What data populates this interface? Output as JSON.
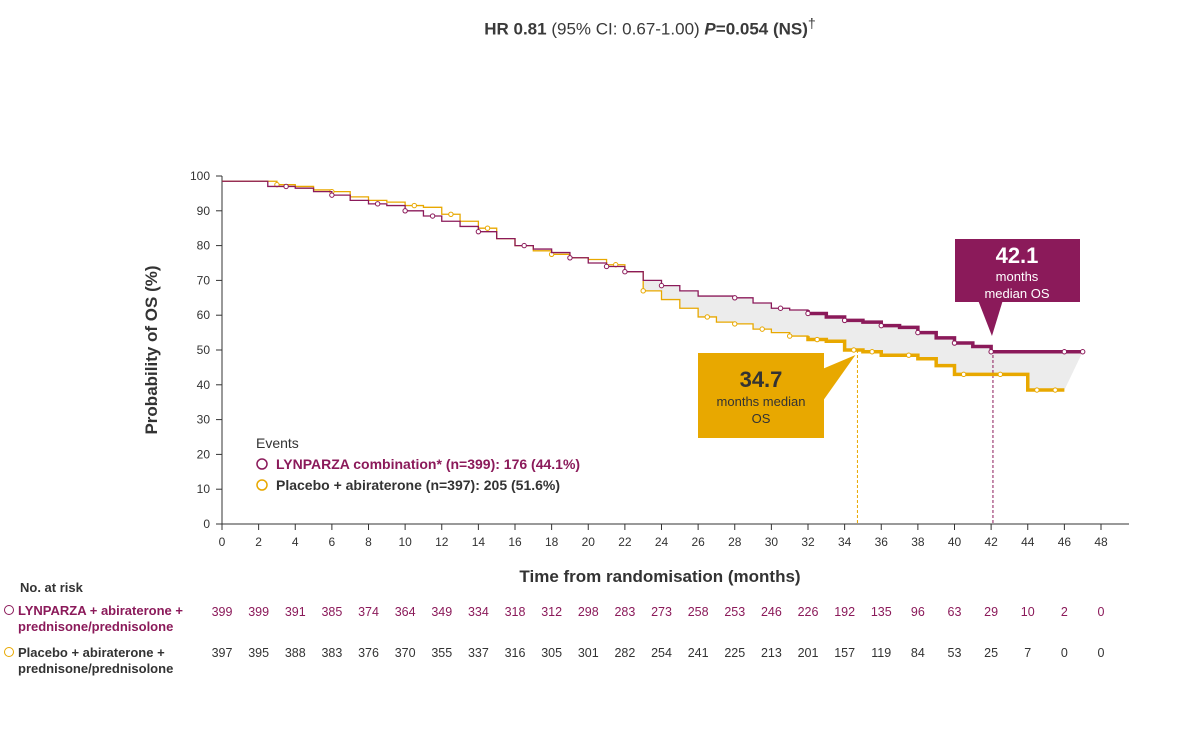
{
  "header": {
    "hr_label": "HR 0.81",
    "ci_text": "(95% CI: 0.67-1.00)",
    "p_label": "P",
    "p_value": "=0.054 (NS)",
    "dagger": "†"
  },
  "colors": {
    "lynparza": "#8B1A5A",
    "placebo": "#E8A800",
    "axis": "#333333"
  },
  "chart_data": {
    "type": "line",
    "title": "",
    "xlabel": "Time from randomisation (months)",
    "ylabel": "Probability of OS (%)",
    "xlim": [
      0,
      48
    ],
    "ylim": [
      0,
      100
    ],
    "x_ticks": [
      0,
      2,
      4,
      6,
      8,
      10,
      12,
      14,
      16,
      18,
      20,
      22,
      24,
      26,
      28,
      30,
      32,
      34,
      36,
      38,
      40,
      42,
      44,
      46,
      48
    ],
    "y_ticks": [
      0,
      10,
      20,
      30,
      40,
      50,
      60,
      70,
      80,
      90,
      100
    ],
    "grid": false,
    "legend_title": "Events",
    "legend_placement": "bottom-left",
    "series": [
      {
        "name": "LYNPARZA combination* (n=399): 176 (44.1%)",
        "color": "#8B1A5A",
        "x": [
          0,
          2,
          2.5,
          4,
          5,
          6,
          7,
          8,
          9,
          10,
          11,
          12,
          13,
          14,
          15,
          16,
          17,
          18,
          19,
          20,
          21,
          22,
          23,
          24,
          25,
          26,
          27,
          28,
          29,
          30,
          31,
          32,
          33,
          34,
          35,
          36,
          37,
          38,
          39,
          40,
          41,
          42,
          43,
          44,
          45,
          46,
          47
        ],
        "y": [
          98.5,
          98.5,
          97,
          96.5,
          95.5,
          94.5,
          93,
          92,
          91.5,
          90,
          88.5,
          87,
          85.5,
          84,
          82,
          80,
          79,
          78,
          76.5,
          75,
          74,
          72.5,
          70,
          68.5,
          67,
          65.5,
          65.5,
          65,
          63.5,
          62,
          61.5,
          60.5,
          59.5,
          58.5,
          58,
          57,
          56.5,
          55,
          53.5,
          52,
          51,
          49.5,
          49.5,
          49.5,
          49.5,
          49.5,
          49.5
        ],
        "censor_x": [
          3.5,
          6,
          8.5,
          10,
          11.5,
          14,
          16.5,
          19,
          21,
          22,
          24,
          28,
          30.5,
          32,
          34,
          36,
          38,
          40,
          42,
          46,
          47
        ]
      },
      {
        "name": "Placebo + abiraterone (n=397): 205 (51.6%)",
        "color": "#E8A800",
        "x": [
          0,
          2,
          3,
          4,
          5,
          6,
          7,
          8,
          9,
          10,
          11,
          12,
          13,
          14,
          15,
          16,
          17,
          18,
          19,
          20,
          21,
          22,
          23,
          24,
          25,
          26,
          27,
          28,
          29,
          30,
          31,
          32,
          33,
          34,
          35,
          36,
          37,
          38,
          39,
          40,
          41,
          42,
          43,
          44,
          45,
          46
        ],
        "y": [
          98.5,
          98.5,
          97.5,
          97,
          96,
          95.5,
          94,
          93,
          92.5,
          91.5,
          91,
          89,
          87,
          85,
          82,
          80,
          78.5,
          77.5,
          76.5,
          76,
          74.5,
          72.5,
          67,
          64.5,
          62,
          59.5,
          58,
          57.5,
          56,
          55,
          54,
          53,
          52.5,
          50,
          49.5,
          48.5,
          48.5,
          47.5,
          45.5,
          43,
          43,
          43,
          43,
          38.5,
          38.5,
          38.5
        ],
        "censor_x": [
          3,
          6,
          10.5,
          12.5,
          14.5,
          18,
          21.5,
          23,
          26.5,
          28,
          29.5,
          31,
          32.5,
          34.5,
          35.5,
          37.5,
          40.5,
          42.5,
          44.5,
          45.5
        ]
      }
    ],
    "annotations": [
      {
        "id": "lynparza_median",
        "value": "42.1",
        "text": "months median OS",
        "x": 42.1,
        "y": 50
      },
      {
        "id": "placebo_median",
        "value": "34.7",
        "text": "months median OS",
        "x": 34.7,
        "y": 50
      }
    ],
    "at_risk": {
      "title": "No. at risk",
      "times": [
        0,
        2,
        4,
        6,
        8,
        10,
        12,
        14,
        16,
        18,
        20,
        22,
        24,
        26,
        28,
        30,
        32,
        34,
        36,
        38,
        40,
        42,
        44,
        46,
        48
      ],
      "rows": [
        {
          "label_line1": "LYNPARZA + abiraterone +",
          "label_line2": "prednisone/prednisolone",
          "color": "#8B1A5A",
          "values": [
            "399",
            "399",
            "391",
            "385",
            "374",
            "364",
            "349",
            "334",
            "318",
            "312",
            "298",
            "283",
            "273",
            "258",
            "253",
            "246",
            "226",
            "192",
            "135",
            "96",
            "63",
            "29",
            "10",
            "2",
            "0"
          ]
        },
        {
          "label_line1": "Placebo + abiraterone +",
          "label_line2": "prednisone/prednisolone",
          "color": "#E8A800",
          "values": [
            "397",
            "395",
            "388",
            "383",
            "376",
            "370",
            "355",
            "337",
            "316",
            "305",
            "301",
            "282",
            "254",
            "241",
            "225",
            "213",
            "201",
            "157",
            "119",
            "84",
            "53",
            "25",
            "7",
            "0",
            "0"
          ]
        }
      ]
    }
  }
}
